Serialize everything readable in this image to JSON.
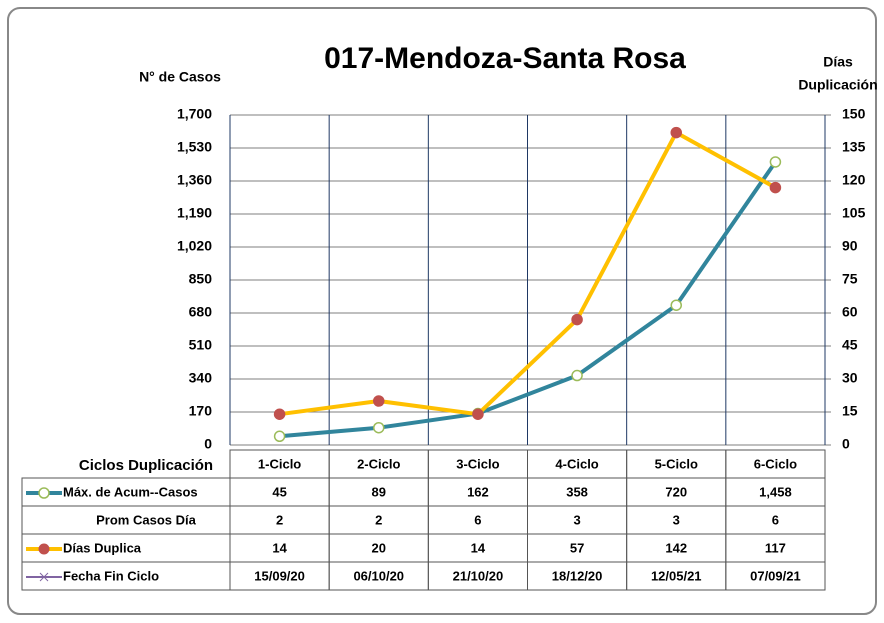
{
  "chart_data": {
    "type": "line",
    "title": "017-Mendoza-Santa Rosa",
    "ylabel": "N° de Casos",
    "y2label": [
      "Días",
      "Duplicación"
    ],
    "xlabel": "Ciclos Duplicación",
    "categories": [
      "1-Ciclo",
      "2-Ciclo",
      "3-Ciclo",
      "4-Ciclo",
      "5-Ciclo",
      "6-Ciclo"
    ],
    "series": [
      {
        "name": "Máx. de Acum--Casos",
        "color": "#31859c",
        "marker_color": "#9bbb59",
        "values": [
          45,
          89,
          162,
          358,
          720,
          1458
        ],
        "value_labels": [
          "45",
          "89",
          "162",
          "358",
          "720",
          "1,458"
        ]
      },
      {
        "name": "Días Duplica",
        "color": "#ffc000",
        "marker_color": "#c0504d",
        "axis": "y2",
        "values": [
          14,
          20,
          14,
          57,
          142,
          117
        ]
      }
    ],
    "table_rows": [
      {
        "name": "Prom Casos Día",
        "values": [
          2,
          2,
          6,
          3,
          3,
          6
        ]
      },
      {
        "name": "Fecha Fin Ciclo",
        "color": "#8064a2",
        "values": [
          "15/09/20",
          "06/10/20",
          "21/10/20",
          "18/12/20",
          "12/05/21",
          "07/09/21"
        ]
      }
    ],
    "ylim": [
      0,
      1700
    ],
    "yticks": [
      0,
      170,
      340,
      510,
      680,
      850,
      {
        "value": 1020,
        "label": "1,020"
      },
      {
        "value": 1190,
        "label": "1,190"
      },
      {
        "value": 1360,
        "label": "1,360"
      },
      {
        "value": 1530,
        "label": "1,530"
      },
      {
        "value": 1700,
        "label": "1,700"
      }
    ],
    "y2lim": [
      0,
      150
    ],
    "y2ticks": [
      0,
      15,
      30,
      45,
      60,
      75,
      90,
      105,
      120,
      135,
      150
    ],
    "grid": true
  }
}
